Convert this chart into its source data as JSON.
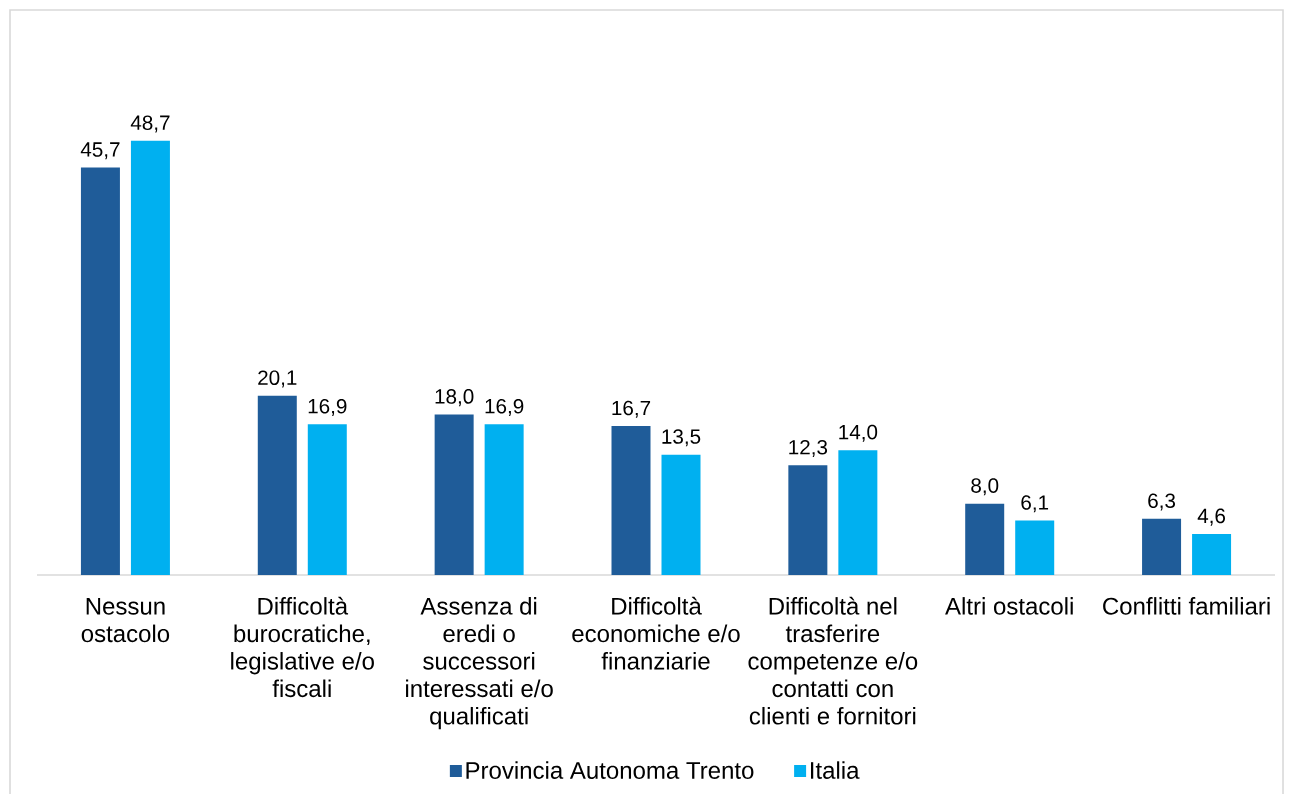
{
  "chart_data": {
    "type": "bar",
    "categories": [
      "Nessun ostacolo",
      "Difficoltà burocratiche, legislative e/o fiscali",
      "Assenza di eredi o successori interessati e/o qualificati",
      "Difficoltà economiche e/o finanziarie",
      "Difficoltà nel trasferire competenze e/o contatti con clienti e fornitori",
      "Altri ostacoli",
      "Conflitti familiari"
    ],
    "series": [
      {
        "name": "Provincia Autonoma Trento",
        "color": "#1f5c99",
        "values": [
          45.7,
          20.1,
          18.0,
          16.7,
          12.3,
          8.0,
          6.3
        ],
        "value_labels": [
          "45,7",
          "20,1",
          "18,0",
          "16,7",
          "12,3",
          "8,0",
          "6,3"
        ]
      },
      {
        "name": "Italia",
        "color": "#00b0f0",
        "values": [
          48.7,
          16.9,
          16.9,
          13.5,
          14.0,
          6.1,
          4.6
        ],
        "value_labels": [
          "48,7",
          "16,9",
          "16,9",
          "13,5",
          "14,0",
          "6,1",
          "4,6"
        ]
      }
    ],
    "legend": "bottom"
  }
}
